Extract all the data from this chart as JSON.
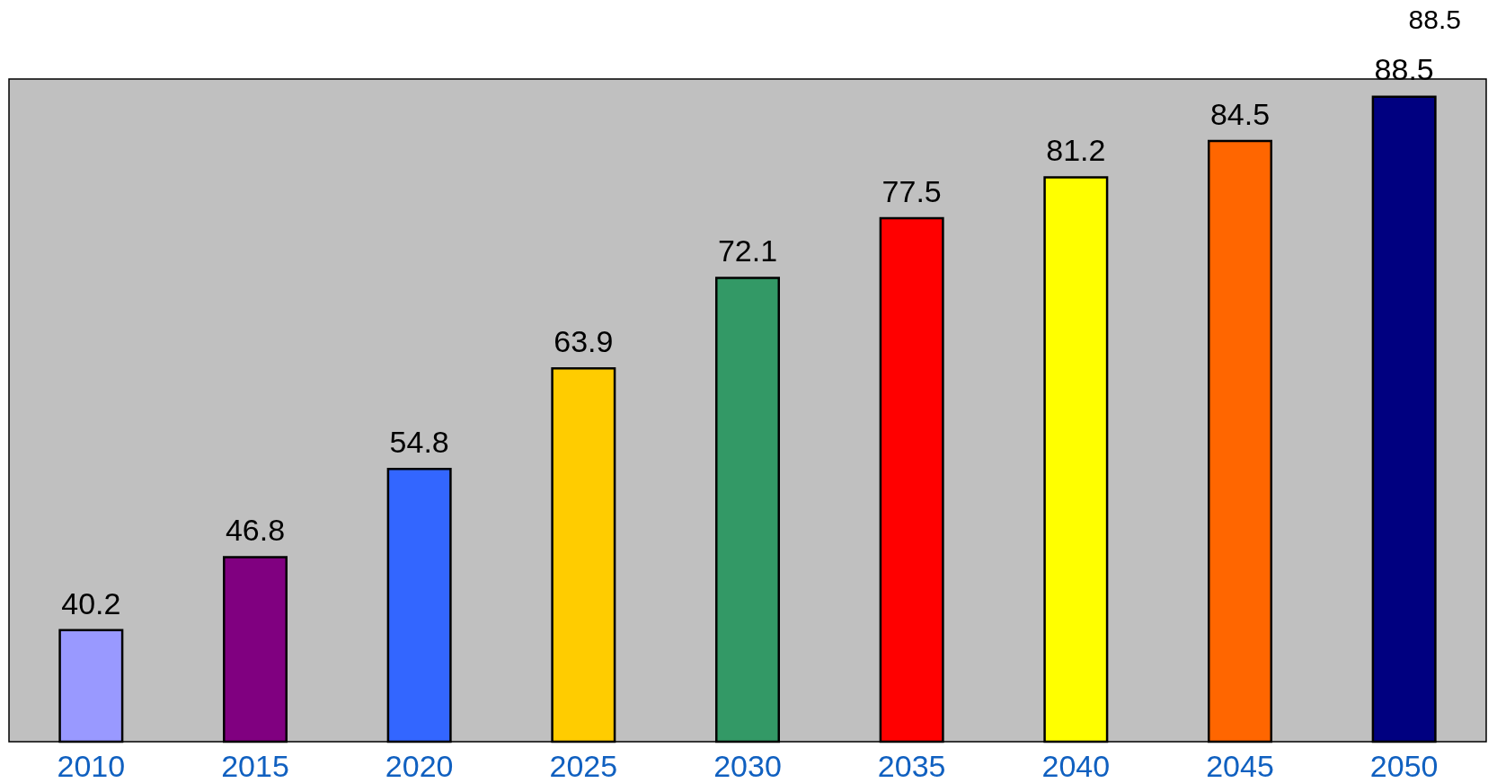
{
  "chart_data": {
    "type": "bar",
    "categories": [
      "2010",
      "2015",
      "2020",
      "2025",
      "2030",
      "2035",
      "2040",
      "2045",
      "2050"
    ],
    "values": [
      40.2,
      46.8,
      54.8,
      63.9,
      72.1,
      77.5,
      81.2,
      84.5,
      88.5
    ],
    "colors": [
      "#9999ff",
      "#800080",
      "#3366ff",
      "#ffcc00",
      "#339966",
      "#ff0000",
      "#ffff00",
      "#ff6600",
      "#000080"
    ],
    "ylim": [
      30,
      90
    ],
    "tick_labels": "x",
    "data_labels": true,
    "grid": false,
    "annotations": [
      "88.5"
    ]
  }
}
